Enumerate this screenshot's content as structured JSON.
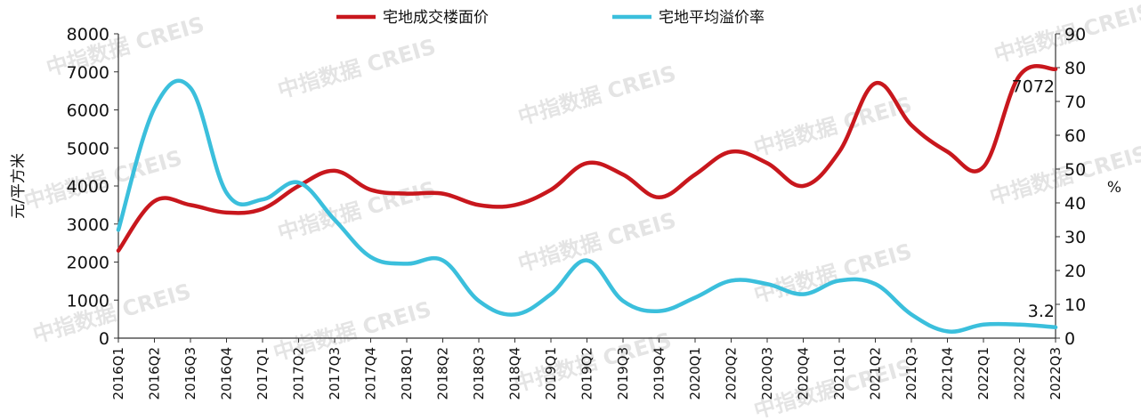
{
  "chart_data": {
    "type": "line",
    "categories": [
      "2016Q1",
      "2016Q2",
      "2016Q3",
      "2016Q4",
      "2017Q1",
      "2017Q2",
      "2017Q3",
      "2017Q4",
      "2018Q1",
      "2018Q2",
      "2018Q3",
      "2018Q4",
      "2019Q1",
      "2019Q2",
      "2019Q3",
      "2019Q4",
      "2020Q1",
      "2020Q2",
      "2020Q3",
      "2020Q4",
      "2021Q1",
      "2021Q2",
      "2021Q3",
      "2021Q4",
      "2022Q1",
      "2022Q2",
      "2022Q3"
    ],
    "series": [
      {
        "name": "宅地成交楼面价",
        "axis": "left",
        "color": "#c8171d",
        "values": [
          2300,
          3600,
          3500,
          3300,
          3400,
          4000,
          4400,
          3900,
          3800,
          3800,
          3500,
          3500,
          3900,
          4600,
          4300,
          3700,
          4300,
          4900,
          4600,
          4000,
          4900,
          6700,
          5600,
          4900,
          4500,
          6900,
          7072
        ]
      },
      {
        "name": "宅地平均溢价率",
        "axis": "right",
        "color": "#3bbfdc",
        "values": [
          32,
          68,
          74,
          43,
          41,
          46,
          35,
          24,
          22,
          23,
          11,
          7,
          13,
          23,
          11,
          8,
          12,
          17,
          16,
          13,
          17,
          16,
          7,
          2,
          4,
          4,
          3.2
        ]
      }
    ],
    "y_left": {
      "label": "元/平方米",
      "ylim": [
        0,
        8000
      ],
      "ticks": [
        0,
        1000,
        2000,
        3000,
        4000,
        5000,
        6000,
        7000,
        8000
      ]
    },
    "y_right": {
      "label": "%",
      "ylim": [
        0,
        90
      ],
      "ticks": [
        0,
        10,
        20,
        30,
        40,
        50,
        60,
        70,
        80,
        90
      ]
    },
    "annotations": [
      {
        "series": 0,
        "index": 26,
        "text": "7072"
      },
      {
        "series": 1,
        "index": 26,
        "text": "3.2"
      }
    ],
    "legend": {
      "position": "top"
    },
    "grid": false
  },
  "watermark": "中指数据 CREIS"
}
